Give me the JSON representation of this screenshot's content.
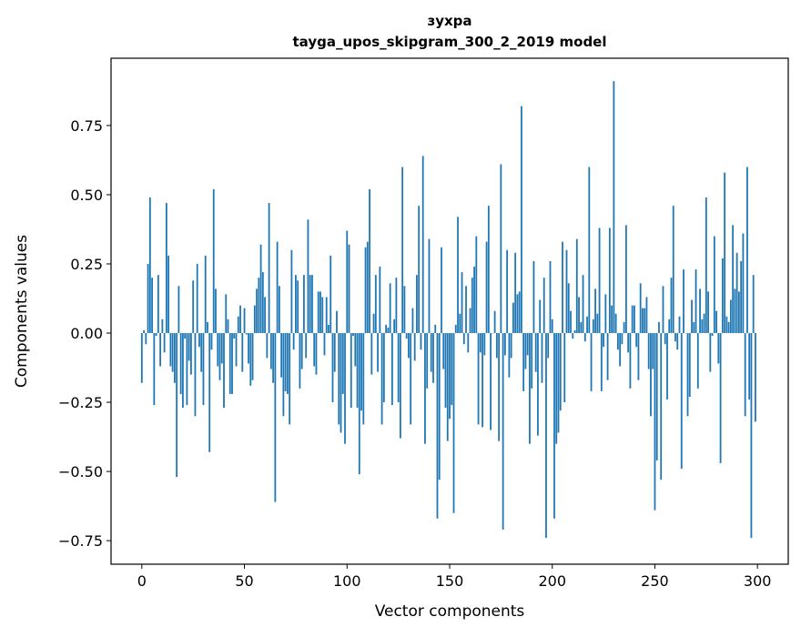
{
  "chart_data": {
    "type": "bar",
    "title": [
      "зухра",
      "tayga_upos_skipgram_300_2_2019 model"
    ],
    "xlabel": "Vector components",
    "ylabel": "Components values",
    "xlim": [
      -15,
      315
    ],
    "ylim": [
      -0.835,
      0.993
    ],
    "xticks": [
      0,
      50,
      100,
      150,
      200,
      250,
      300
    ],
    "xtick_labels": [
      "0",
      "50",
      "100",
      "150",
      "200",
      "250",
      "300"
    ],
    "yticks": [
      -0.75,
      -0.5,
      -0.25,
      0,
      0.25,
      0.5,
      0.75
    ],
    "ytick_labels": [
      "−0.75",
      "−0.50",
      "−0.25",
      "0.00",
      "0.25",
      "0.50",
      "0.75"
    ],
    "grid": false,
    "bar_color": "#1f77b4",
    "values": [
      -0.18,
      0.01,
      -0.04,
      0.25,
      0.49,
      0.2,
      -0.26,
      -0.01,
      0.21,
      -0.12,
      0.05,
      -0.07,
      0.47,
      0.28,
      -0.12,
      -0.14,
      -0.18,
      -0.52,
      0.17,
      -0.22,
      -0.27,
      -0.02,
      -0.26,
      -0.1,
      -0.15,
      0.19,
      -0.3,
      0.25,
      -0.05,
      -0.14,
      -0.26,
      0.28,
      0.04,
      -0.43,
      -0.06,
      0.52,
      0.16,
      -0.12,
      -0.17,
      -0.11,
      -0.27,
      0.14,
      0.05,
      -0.22,
      -0.22,
      -0.02,
      -0.12,
      0.06,
      0.1,
      -0.14,
      0.09,
      -0.005,
      -0.11,
      -0.19,
      -0.17,
      0.1,
      0.16,
      0.2,
      0.32,
      0.22,
      0.13,
      -0.09,
      0.47,
      -0.13,
      -0.18,
      -0.61,
      0.33,
      0.17,
      -0.16,
      -0.3,
      -0.21,
      -0.22,
      -0.33,
      0.3,
      -0.06,
      0.21,
      0.19,
      -0.2,
      -0.13,
      0.21,
      -0.09,
      0.41,
      0.21,
      0.21,
      -0.12,
      -0.15,
      0.15,
      0.15,
      0.13,
      -0.08,
      0.13,
      0.03,
      0.28,
      -0.25,
      -0.14,
      0.08,
      -0.33,
      -0.36,
      -0.22,
      -0.4,
      0.37,
      0.32,
      -0.27,
      -0.01,
      -0.12,
      -0.27,
      -0.51,
      -0.28,
      -0.33,
      0.31,
      0.33,
      0.52,
      -0.15,
      0.07,
      0.21,
      -0.14,
      0.24,
      -0.33,
      -0.25,
      0.03,
      0.02,
      0.18,
      -0.26,
      0.05,
      0.2,
      -0.25,
      -0.38,
      0.6,
      0.17,
      -0.02,
      -0.09,
      -0.33,
      0.09,
      -0.1,
      0.21,
      0.46,
      -0.06,
      0.64,
      -0.4,
      -0.2,
      0.34,
      -0.14,
      -0.18,
      0.03,
      -0.67,
      -0.53,
      0.31,
      -0.13,
      -0.27,
      -0.39,
      -0.31,
      -0.26,
      -0.65,
      0.03,
      0.42,
      0.07,
      0.22,
      -0.04,
      0.17,
      -0.07,
      0.09,
      0.2,
      0.24,
      0.35,
      -0.33,
      -0.07,
      -0.34,
      -0.08,
      0.33,
      0.46,
      -0.35,
      0.0,
      0.08,
      -0.09,
      -0.39,
      0.61,
      -0.71,
      -0.08,
      0.3,
      -0.16,
      -0.09,
      0.11,
      0.29,
      0.14,
      0.15,
      0.82,
      -0.21,
      -0.13,
      -0.08,
      -0.4,
      -0.2,
      0.26,
      -0.14,
      -0.37,
      0.12,
      -0.18,
      0.2,
      -0.74,
      -0.09,
      0.26,
      0.05,
      -0.67,
      -0.4,
      -0.36,
      -0.28,
      0.33,
      -0.25,
      0.3,
      0.18,
      0.08,
      -0.02,
      0.01,
      0.34,
      0.13,
      0.04,
      0.21,
      -0.03,
      0.06,
      0.6,
      -0.21,
      0.05,
      0.16,
      0.07,
      0.38,
      -0.21,
      -0.05,
      0.14,
      -0.17,
      0.38,
      0.1,
      0.91,
      0.07,
      -0.06,
      -0.12,
      -0.04,
      0.04,
      0.39,
      -0.07,
      -0.2,
      0.1,
      0.1,
      -0.05,
      -0.17,
      0.18,
      0.09,
      0.09,
      0.13,
      -0.13,
      -0.3,
      -0.13,
      -0.64,
      -0.46,
      0.04,
      -0.53,
      0.17,
      -0.04,
      -0.24,
      0.05,
      0.2,
      0.46,
      -0.03,
      -0.06,
      0.06,
      -0.49,
      0.23,
      0.0,
      -0.3,
      -0.23,
      0.12,
      0.04,
      0.23,
      -0.2,
      0.16,
      0.05,
      0.07,
      0.49,
      0.15,
      -0.14,
      -0.01,
      0.35,
      0.08,
      -0.11,
      -0.47,
      0.27,
      0.58,
      0.06,
      0.04,
      0.12,
      0.39,
      0.16,
      0.29,
      0.15,
      0.26,
      0.36,
      -0.3,
      0.6,
      -0.24,
      -0.74,
      0.21,
      -0.32
    ]
  }
}
